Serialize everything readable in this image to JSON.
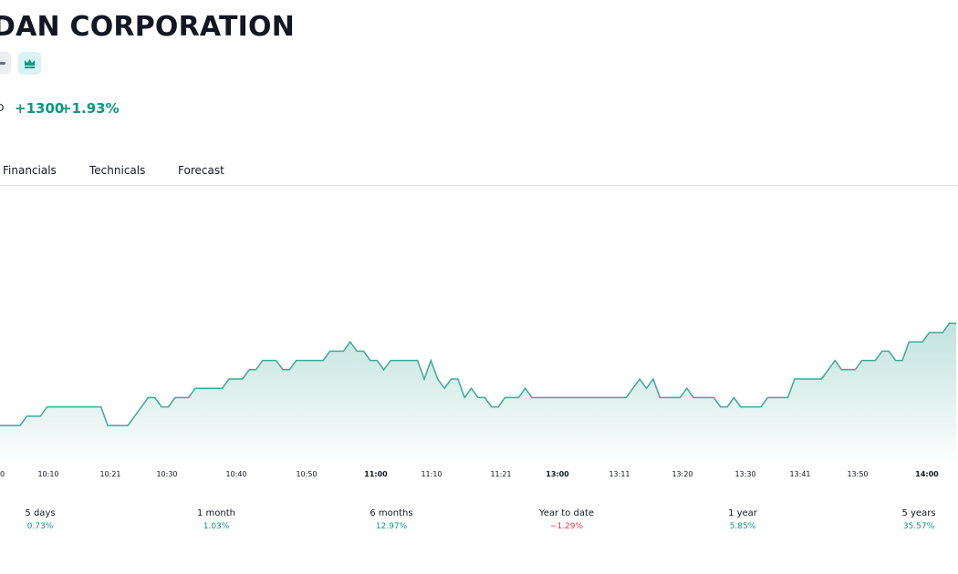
{
  "header": {
    "company_name": "DAN CORPORATION",
    "currency_fragment": "D",
    "change_abs": "+1300",
    "change_pct": "+1.93%",
    "badges": [
      {
        "icon": "minus-icon",
        "color": "#eceef2"
      },
      {
        "icon": "crown-icon",
        "color": "#d9f2f6"
      }
    ]
  },
  "tabs": [
    {
      "label": "Financials"
    },
    {
      "label": "Technicals"
    },
    {
      "label": "Forecast"
    }
  ],
  "colors": {
    "accent": "#089981",
    "line": "#3fa898",
    "negative": "#f23645",
    "text": "#131722"
  },
  "chart_data": {
    "type": "area",
    "x_ticks": [
      {
        "label": "0",
        "bold": false
      },
      {
        "label": "10:10",
        "bold": false
      },
      {
        "label": "10:21",
        "bold": false
      },
      {
        "label": "10:30",
        "bold": false
      },
      {
        "label": "10:40",
        "bold": false
      },
      {
        "label": "10:50",
        "bold": false
      },
      {
        "label": "11:00",
        "bold": true
      },
      {
        "label": "11:10",
        "bold": false
      },
      {
        "label": "11:21",
        "bold": false
      },
      {
        "label": "13:00",
        "bold": true
      },
      {
        "label": "13:11",
        "bold": false
      },
      {
        "label": "13:20",
        "bold": false
      },
      {
        "label": "13:30",
        "bold": false
      },
      {
        "label": "13:41",
        "bold": false
      },
      {
        "label": "13:50",
        "bold": false
      },
      {
        "label": "14:00",
        "bold": true
      }
    ],
    "y_levels": [
      0,
      0,
      0,
      0,
      1,
      1,
      1,
      2,
      2,
      2,
      2,
      2,
      2,
      2,
      2,
      2,
      0,
      0,
      0,
      0,
      1,
      2,
      3,
      3,
      2,
      2,
      3,
      3,
      3,
      4,
      4,
      4,
      4,
      4,
      5,
      5,
      5,
      6,
      6,
      7,
      7,
      7,
      6,
      6,
      7,
      7,
      7,
      7,
      7,
      8,
      8,
      8,
      9,
      8,
      8,
      7,
      7,
      6,
      7,
      7,
      7,
      7,
      7,
      5,
      7,
      5,
      4,
      5,
      5,
      3,
      4,
      3,
      3,
      2,
      2,
      3,
      3,
      3,
      4,
      3,
      3,
      3,
      3,
      3,
      3,
      3,
      3,
      3,
      3,
      3,
      3,
      3,
      3,
      3,
      4,
      5,
      4,
      5,
      3,
      3,
      3,
      3,
      4,
      3,
      3,
      3,
      3,
      2,
      2,
      3,
      2,
      2,
      2,
      2,
      3,
      3,
      3,
      3,
      5,
      5,
      5,
      5,
      5,
      6,
      7,
      6,
      6,
      6,
      7,
      7,
      7,
      8,
      8,
      7,
      7,
      9,
      9,
      9,
      10,
      10,
      10,
      11,
      11
    ],
    "y_level_note_unit": "relative price steps",
    "grid": false,
    "legend": "none"
  },
  "periods": [
    {
      "label": "5 days",
      "value": "0.73%",
      "negative": false
    },
    {
      "label": "1 month",
      "value": "1.03%",
      "negative": false
    },
    {
      "label": "6 months",
      "value": "12.97%",
      "negative": false
    },
    {
      "label": "Year to date",
      "value": "−1.29%",
      "negative": true
    },
    {
      "label": "1 year",
      "value": "5.85%",
      "negative": false
    },
    {
      "label": "5 years",
      "value": "35.57%",
      "negative": false
    }
  ]
}
